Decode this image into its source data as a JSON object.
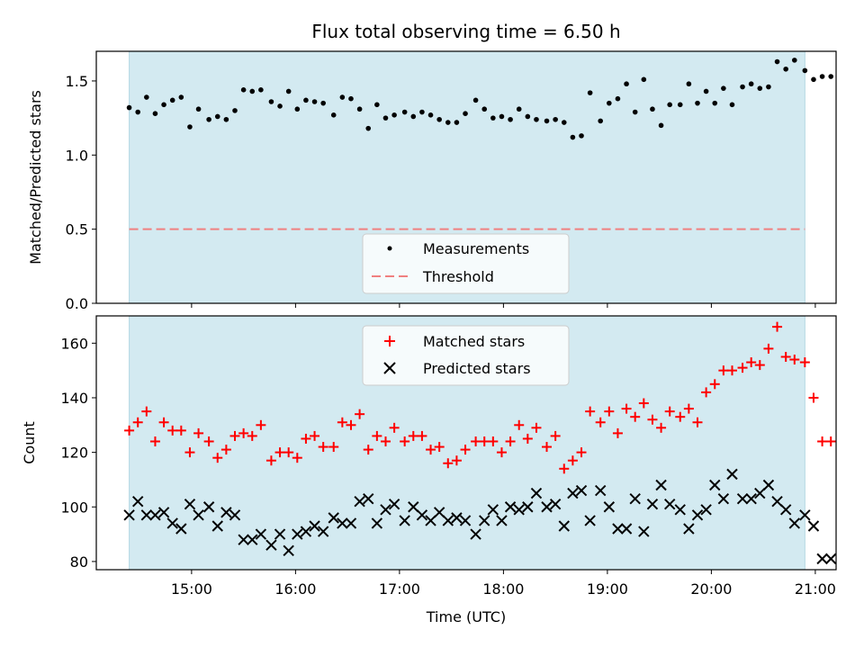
{
  "chart_data": [
    {
      "type": "scatter",
      "title": "Flux total observing time = 6.50 h",
      "xlabel": "",
      "ylabel": "Matched/Predicted stars",
      "ylim": [
        0,
        1.7
      ],
      "yticks": [
        "0.0",
        "0.5",
        "1.0",
        "1.5"
      ],
      "shaded_region": {
        "color": "#d3eaf1",
        "x_start": "14:24",
        "x_end": "20:54"
      },
      "legend": {
        "position": "lower-center",
        "entries": [
          "Measurements",
          "Threshold"
        ]
      },
      "series": [
        {
          "name": "Measurements",
          "color": "#000000",
          "marker": "dot",
          "x_minutes": [
            864,
            869,
            874,
            879,
            884,
            889,
            894,
            899,
            904,
            910,
            915,
            920,
            925,
            930,
            935,
            940,
            946,
            951,
            956,
            961,
            966,
            971,
            976,
            982,
            987,
            992,
            997,
            1002,
            1007,
            1012,
            1017,
            1023,
            1028,
            1033,
            1038,
            1043,
            1048,
            1053,
            1058,
            1064,
            1069,
            1074,
            1079,
            1084,
            1089,
            1094,
            1099,
            1105,
            1110,
            1115,
            1120,
            1125,
            1130,
            1136,
            1141,
            1146,
            1151,
            1156,
            1161,
            1166,
            1171,
            1176,
            1182,
            1187,
            1192,
            1197,
            1202,
            1207,
            1212,
            1218,
            1223,
            1228,
            1233,
            1238,
            1243,
            1248,
            1254,
            1259,
            1264,
            1269
          ],
          "values": [
            1.32,
            1.29,
            1.39,
            1.28,
            1.34,
            1.37,
            1.39,
            1.19,
            1.31,
            1.24,
            1.26,
            1.24,
            1.3,
            1.44,
            1.43,
            1.44,
            1.36,
            1.33,
            1.43,
            1.31,
            1.37,
            1.36,
            1.35,
            1.27,
            1.39,
            1.38,
            1.31,
            1.18,
            1.34,
            1.25,
            1.27,
            1.29,
            1.26,
            1.29,
            1.27,
            1.24,
            1.22,
            1.22,
            1.28,
            1.37,
            1.31,
            1.25,
            1.26,
            1.24,
            1.31,
            1.26,
            1.24,
            1.23,
            1.24,
            1.22,
            1.12,
            1.13,
            1.42,
            1.23,
            1.35,
            1.38,
            1.48,
            1.29,
            1.51,
            1.31,
            1.2,
            1.34,
            1.34,
            1.48,
            1.35,
            1.43,
            1.35,
            1.45,
            1.34,
            1.46,
            1.48,
            1.45,
            1.46,
            1.63,
            1.58,
            1.64,
            1.57,
            1.51,
            1.53,
            1.53
          ]
        },
        {
          "name": "Threshold",
          "color": "#f08080",
          "marker": "dashed-line",
          "values": [
            0.5,
            0.5
          ]
        }
      ]
    },
    {
      "type": "scatter",
      "title": "",
      "xlabel": "Time (UTC)",
      "ylabel": "Count",
      "ylim": [
        77,
        170
      ],
      "yticks": [
        "80",
        "100",
        "120",
        "140",
        "160"
      ],
      "xticks": [
        "15:00",
        "16:00",
        "17:00",
        "18:00",
        "19:00",
        "20:00",
        "21:00"
      ],
      "xlim": [
        "14:05",
        "21:12"
      ],
      "legend": {
        "position": "upper-center",
        "entries": [
          "Matched stars",
          "Predicted stars"
        ]
      },
      "series": [
        {
          "name": "Matched stars",
          "color": "#ff0000",
          "marker": "plus",
          "x_minutes": [
            864,
            869,
            874,
            879,
            884,
            889,
            894,
            899,
            904,
            910,
            915,
            920,
            925,
            930,
            935,
            940,
            946,
            951,
            956,
            961,
            966,
            971,
            976,
            982,
            987,
            992,
            997,
            1002,
            1007,
            1012,
            1017,
            1023,
            1028,
            1033,
            1038,
            1043,
            1048,
            1053,
            1058,
            1064,
            1069,
            1074,
            1079,
            1084,
            1089,
            1094,
            1099,
            1105,
            1110,
            1115,
            1120,
            1125,
            1130,
            1136,
            1141,
            1146,
            1151,
            1156,
            1161,
            1166,
            1171,
            1176,
            1182,
            1187,
            1192,
            1197,
            1202,
            1207,
            1212,
            1218,
            1223,
            1228,
            1233,
            1238,
            1243,
            1248,
            1254,
            1259,
            1264,
            1269
          ],
          "values": [
            128,
            131,
            135,
            124,
            131,
            128,
            128,
            120,
            127,
            124,
            118,
            121,
            126,
            127,
            126,
            130,
            117,
            120,
            120,
            118,
            125,
            126,
            122,
            122,
            131,
            130,
            134,
            121,
            126,
            124,
            129,
            124,
            126,
            126,
            121,
            122,
            116,
            117,
            121,
            124,
            124,
            124,
            120,
            124,
            130,
            125,
            129,
            122,
            126,
            114,
            117,
            120,
            135,
            131,
            135,
            127,
            136,
            133,
            138,
            132,
            129,
            135,
            133,
            136,
            131,
            142,
            145,
            150,
            150,
            151,
            153,
            152,
            158,
            166,
            155,
            154,
            153,
            140,
            124,
            124
          ]
        },
        {
          "name": "Predicted stars",
          "color": "#000000",
          "marker": "x",
          "x_minutes": [
            864,
            869,
            874,
            879,
            884,
            889,
            894,
            899,
            904,
            910,
            915,
            920,
            925,
            930,
            935,
            940,
            946,
            951,
            956,
            961,
            966,
            971,
            976,
            982,
            987,
            992,
            997,
            1002,
            1007,
            1012,
            1017,
            1023,
            1028,
            1033,
            1038,
            1043,
            1048,
            1053,
            1058,
            1064,
            1069,
            1074,
            1079,
            1084,
            1089,
            1094,
            1099,
            1105,
            1110,
            1115,
            1120,
            1125,
            1130,
            1136,
            1141,
            1146,
            1151,
            1156,
            1161,
            1166,
            1171,
            1176,
            1182,
            1187,
            1192,
            1197,
            1202,
            1207,
            1212,
            1218,
            1223,
            1228,
            1233,
            1238,
            1243,
            1248,
            1254,
            1259,
            1264,
            1269
          ],
          "values": [
            97,
            102,
            97,
            97,
            98,
            94,
            92,
            101,
            97,
            100,
            93,
            98,
            97,
            88,
            88,
            90,
            86,
            90,
            84,
            90,
            91,
            93,
            91,
            96,
            94,
            94,
            102,
            103,
            94,
            99,
            101,
            95,
            100,
            97,
            95,
            98,
            95,
            96,
            95,
            90,
            95,
            99,
            95,
            100,
            99,
            100,
            105,
            100,
            101,
            93,
            105,
            106,
            95,
            106,
            100,
            92,
            92,
            103,
            91,
            101,
            108,
            101,
            99,
            92,
            97,
            99,
            108,
            103,
            112,
            103,
            103,
            105,
            108,
            102,
            99,
            94,
            97,
            93,
            81,
            81
          ]
        }
      ]
    }
  ]
}
